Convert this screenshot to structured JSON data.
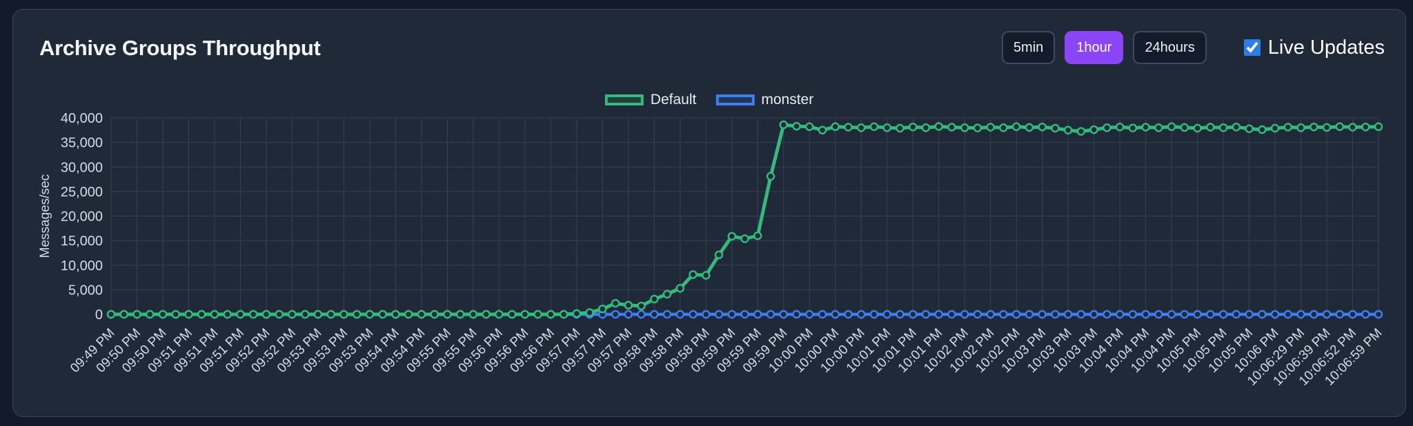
{
  "page": {
    "title": "Archive Groups Throughput"
  },
  "controls": {
    "range_buttons": [
      {
        "label": "5min",
        "active": false
      },
      {
        "label": "1hour",
        "active": true
      },
      {
        "label": "24hours",
        "active": false
      }
    ],
    "live_updates": {
      "label": "Live Updates",
      "checked": true
    }
  },
  "colors": {
    "page_bg": "#121a2b",
    "card_bg": "#1f2937",
    "card_border": "#3a4757",
    "grid": "#35415a",
    "axis_text": "#d4dce8",
    "accent_active_button": "#8b45f7",
    "checkbox_accent": "#2b7de9",
    "series_default": "#35ba7d",
    "series_monster": "#3f7df2"
  },
  "chart_data": {
    "type": "line",
    "title": "Archive Groups Throughput",
    "xlabel": "",
    "ylabel": "Messages/sec",
    "ylim": [
      0,
      40000
    ],
    "ytick_step": 5000,
    "grid": true,
    "legend_position": "top-center",
    "points_per_label": 2,
    "x_labels": [
      "09:49 PM",
      "09:50 PM",
      "09:50 PM",
      "09:51 PM",
      "09:51 PM",
      "09:51 PM",
      "09:52 PM",
      "09:52 PM",
      "09:53 PM",
      "09:53 PM",
      "09:53 PM",
      "09:54 PM",
      "09:54 PM",
      "09:55 PM",
      "09:55 PM",
      "09:56 PM",
      "09:56 PM",
      "09:56 PM",
      "09:57 PM",
      "09:57 PM",
      "09:57 PM",
      "09:58 PM",
      "09:58 PM",
      "09:58 PM",
      "09:59 PM",
      "09:59 PM",
      "09:59 PM",
      "10:00 PM",
      "10:00 PM",
      "10:00 PM",
      "10:01 PM",
      "10:01 PM",
      "10:01 PM",
      "10:02 PM",
      "10:02 PM",
      "10:02 PM",
      "10:03 PM",
      "10:03 PM",
      "10:03 PM",
      "10:04 PM",
      "10:04 PM",
      "10:04 PM",
      "10:05 PM",
      "10:05 PM",
      "10:05 PM",
      "10:06 PM",
      "10:06:29 PM",
      "10:06:39 PM",
      "10:06:52 PM",
      "10:06:59 PM"
    ],
    "series": [
      {
        "name": "Default",
        "color": "#35ba7d",
        "values": [
          0,
          0,
          0,
          0,
          0,
          0,
          0,
          0,
          0,
          0,
          0,
          0,
          0,
          0,
          0,
          0,
          0,
          0,
          0,
          0,
          0,
          0,
          0,
          0,
          0,
          0,
          0,
          0,
          0,
          0,
          0,
          0,
          0,
          0,
          0,
          0,
          150,
          350,
          1100,
          2250,
          1850,
          1700,
          3100,
          4100,
          5300,
          8100,
          7950,
          12100,
          15900,
          15400,
          16000,
          28100,
          38600,
          38300,
          38200,
          37500,
          38200,
          38100,
          38000,
          38200,
          38000,
          37900,
          38150,
          38000,
          38250,
          38100,
          38000,
          37950,
          38100,
          38000,
          38200,
          38050,
          38150,
          37900,
          37500,
          37250,
          37600,
          38000,
          38150,
          37950,
          38100,
          38000,
          38200,
          38050,
          37900,
          38100,
          38000,
          38150,
          37800,
          37600,
          37900,
          38100,
          38000,
          38150,
          38050,
          38200,
          38100,
          38150,
          38200
        ]
      },
      {
        "name": "monster",
        "color": "#3f7df2",
        "values": [
          0,
          0,
          0,
          0,
          0,
          0,
          0,
          0,
          0,
          0,
          0,
          0,
          0,
          0,
          0,
          0,
          0,
          0,
          0,
          0,
          0,
          0,
          0,
          0,
          0,
          0,
          0,
          0,
          0,
          0,
          0,
          0,
          0,
          0,
          0,
          0,
          0,
          0,
          0,
          0,
          0,
          0,
          0,
          0,
          0,
          0,
          0,
          0,
          0,
          0,
          0,
          0,
          0,
          0,
          0,
          0,
          0,
          0,
          0,
          0,
          0,
          0,
          0,
          0,
          0,
          0,
          0,
          0,
          0,
          0,
          0,
          0,
          0,
          0,
          0,
          0,
          0,
          0,
          0,
          0,
          0,
          0,
          0,
          0,
          0,
          0,
          0,
          0,
          0,
          0,
          0,
          0,
          0,
          0,
          0,
          0,
          0,
          0,
          0
        ]
      }
    ]
  }
}
